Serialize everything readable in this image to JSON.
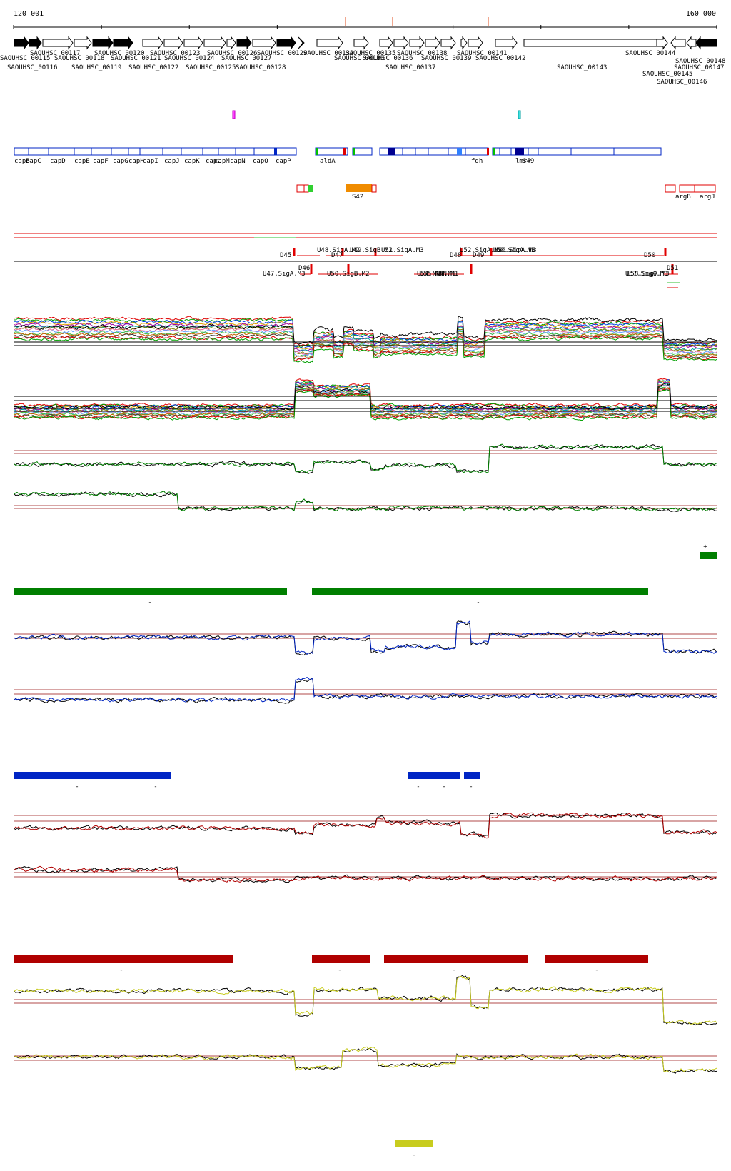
{
  "ruler": {
    "start_label": "120 001",
    "end_label": "160 000",
    "start": 120001,
    "end": 160000
  },
  "colors": {
    "conditions": "#e8e8e8",
    "green": "#007f00",
    "blue": "#0025c4",
    "red": "#b00000",
    "yellow": "#c8cc1e",
    "black": "#000000",
    "threshold": "#b04848",
    "annotation": "#0025c4",
    "region": "#e00000",
    "orange": "#f08c00"
  },
  "genes": [
    {
      "label": "SAOUHSC_00115",
      "strand": "+",
      "filled": true
    },
    {
      "label": "SAOUHSC_00116",
      "strand": "+",
      "filled": true
    },
    {
      "label": "SAOUHSC_00117",
      "strand": "+",
      "filled": false
    },
    {
      "label": "SAOUHSC_00118",
      "strand": "+",
      "filled": false
    },
    {
      "label": "SAOUHSC_00119",
      "strand": "+",
      "filled": true
    },
    {
      "label": "SAOUHSC_00120",
      "strand": "+",
      "filled": true
    },
    {
      "label": "SAOUHSC_00121",
      "strand": "+",
      "filled": false
    },
    {
      "label": "SAOUHSC_00122",
      "strand": "+",
      "filled": false
    },
    {
      "label": "SAOUHSC_00123",
      "strand": "+",
      "filled": false
    },
    {
      "label": "SAOUHSC_00124",
      "strand": "+",
      "filled": false
    },
    {
      "label": "SAOUHSC_00125",
      "strand": "+",
      "filled": false
    },
    {
      "label": "SAOUHSC_00126",
      "strand": "+",
      "filled": true
    },
    {
      "label": "SAOUHSC_00127",
      "strand": "+",
      "filled": false
    },
    {
      "label": "SAOUHSC_00128",
      "strand": "+",
      "filled": true
    },
    {
      "label": "SAOUHSC_00129",
      "strand": "+",
      "filled": true
    },
    {
      "label": "SAOUHSC_00132",
      "strand": "+",
      "filled": false
    },
    {
      "label": "SAOUHSC_00133",
      "strand": "+",
      "filled": false
    },
    {
      "label": "SAOUHSC_00135",
      "strand": "+",
      "filled": false
    },
    {
      "label": "SAOUHSC_00136",
      "strand": "+",
      "filled": false
    },
    {
      "label": "SAOUHSC_00137",
      "strand": "+",
      "filled": false
    },
    {
      "label": "SAOUHSC_00138",
      "strand": "+",
      "filled": false
    },
    {
      "label": "SAOUHSC_00139",
      "strand": "+",
      "filled": false
    },
    {
      "label": "SAOUHSC_00141",
      "strand": "+",
      "filled": false
    },
    {
      "label": "SAOUHSC_00142",
      "strand": "+",
      "filled": false
    },
    {
      "label": "SAOUHSC_00143",
      "strand": "+",
      "filled": false
    },
    {
      "label": "SAOUHSC_00144",
      "strand": "+",
      "filled": false
    },
    {
      "label": "SAOUHSC_00145",
      "strand": "+",
      "filled": false
    },
    {
      "label": "SAOUHSC_00146",
      "strand": "-",
      "filled": false
    },
    {
      "label": "SAOUHSC_00147",
      "strand": "-",
      "filled": false
    },
    {
      "label": "SAOUHSC_00148",
      "strand": "-",
      "filled": true
    }
  ],
  "annotations": [
    "capB",
    "capC",
    "capD",
    "capE",
    "capF",
    "capG",
    "capH",
    "capI",
    "capJ",
    "capK",
    "capL",
    "capM",
    "capN",
    "capO",
    "capP",
    "aldA",
    "fdh",
    "lmrP",
    "S49"
  ],
  "annotations2": [
    "S42",
    "argB",
    "argJ"
  ],
  "regions": [
    "D45",
    "D46",
    "U47.SigA.M3",
    "U48.SigA.M2",
    "D47",
    "U49.SigB.M2",
    "U50.SigB.M2",
    "U51.SigA.M3",
    "U52.SigA.M3",
    "U53.SigA.M3",
    "U54.NNN.M1",
    "U55.NNN.M1",
    "D48",
    "D49",
    "U56.SigA.M3",
    "D50",
    "D51",
    "U57.SigA.M3",
    "U58.SigA.M3"
  ],
  "segments": [
    {
      "color": "green",
      "labels": [
        "+"
      ]
    },
    {
      "color": "green",
      "labels": [
        "-",
        "-"
      ]
    },
    {
      "color": "blue",
      "labels": [
        "-",
        "-",
        "-",
        "-",
        "-"
      ]
    },
    {
      "color": "red",
      "labels": [
        "-",
        "-",
        "-",
        "-"
      ]
    },
    {
      "color": "yellow",
      "labels": [
        "-"
      ]
    }
  ]
}
